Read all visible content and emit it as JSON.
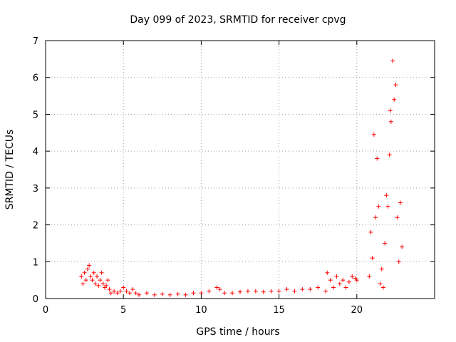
{
  "chart_data": {
    "type": "scatter",
    "title": "Day 099 of 2023, SRMTID for receiver cpvg",
    "xlabel": "GPS time / hours",
    "ylabel": "SRMTID / TECUs",
    "xlim": [
      0,
      25
    ],
    "ylim": [
      0,
      7
    ],
    "xticks": [
      0,
      5,
      10,
      15,
      20
    ],
    "yticks": [
      0,
      1,
      2,
      3,
      4,
      5,
      6,
      7
    ],
    "grid": true,
    "marker": "+",
    "color": "#ff0000",
    "series": [
      {
        "name": "SRMTID",
        "x": [
          2.3,
          2.4,
          2.5,
          2.6,
          2.7,
          2.8,
          2.9,
          3.0,
          3.1,
          3.2,
          3.3,
          3.4,
          3.5,
          3.6,
          3.7,
          3.8,
          3.9,
          4.0,
          4.1,
          4.2,
          4.4,
          4.6,
          4.8,
          5.0,
          5.2,
          5.4,
          5.6,
          5.8,
          6.0,
          6.5,
          7.0,
          7.5,
          8.0,
          8.5,
          9.0,
          9.5,
          10.0,
          10.5,
          11.0,
          11.2,
          11.5,
          12.0,
          12.5,
          13.0,
          13.5,
          14.0,
          14.5,
          15.0,
          15.5,
          16.0,
          16.5,
          17.0,
          17.5,
          18.0,
          18.1,
          18.3,
          18.5,
          18.7,
          18.9,
          19.1,
          19.3,
          19.5,
          19.7,
          19.9,
          20.0,
          20.8,
          20.9,
          21.0,
          21.1,
          21.2,
          21.3,
          21.4,
          21.5,
          21.6,
          21.7,
          21.8,
          21.9,
          22.0,
          22.1,
          22.15,
          22.2,
          22.3,
          22.4,
          22.5,
          22.6,
          22.7,
          22.8,
          22.9
        ],
        "y": [
          0.6,
          0.4,
          0.7,
          0.5,
          0.8,
          0.9,
          0.6,
          0.5,
          0.7,
          0.4,
          0.6,
          0.35,
          0.5,
          0.7,
          0.4,
          0.3,
          0.35,
          0.5,
          0.25,
          0.15,
          0.2,
          0.15,
          0.2,
          0.3,
          0.2,
          0.15,
          0.25,
          0.15,
          0.1,
          0.15,
          0.1,
          0.12,
          0.1,
          0.12,
          0.1,
          0.15,
          0.15,
          0.2,
          0.3,
          0.25,
          0.15,
          0.15,
          0.18,
          0.2,
          0.2,
          0.18,
          0.2,
          0.2,
          0.25,
          0.2,
          0.25,
          0.25,
          0.3,
          0.2,
          0.7,
          0.5,
          0.3,
          0.6,
          0.4,
          0.5,
          0.3,
          0.45,
          0.6,
          0.55,
          0.5,
          0.6,
          1.8,
          1.1,
          4.45,
          2.2,
          3.8,
          2.5,
          0.4,
          0.8,
          0.3,
          1.5,
          2.8,
          2.5,
          3.9,
          5.1,
          4.8,
          6.45,
          5.4,
          5.8,
          2.2,
          1.0,
          2.6,
          1.4
        ],
        "y_text": "scatter of + markers, low values (~0.1-0.9) from 2.3 to 20 h, then a spike up to ~6.5 TECU around 22 h"
      }
    ]
  }
}
